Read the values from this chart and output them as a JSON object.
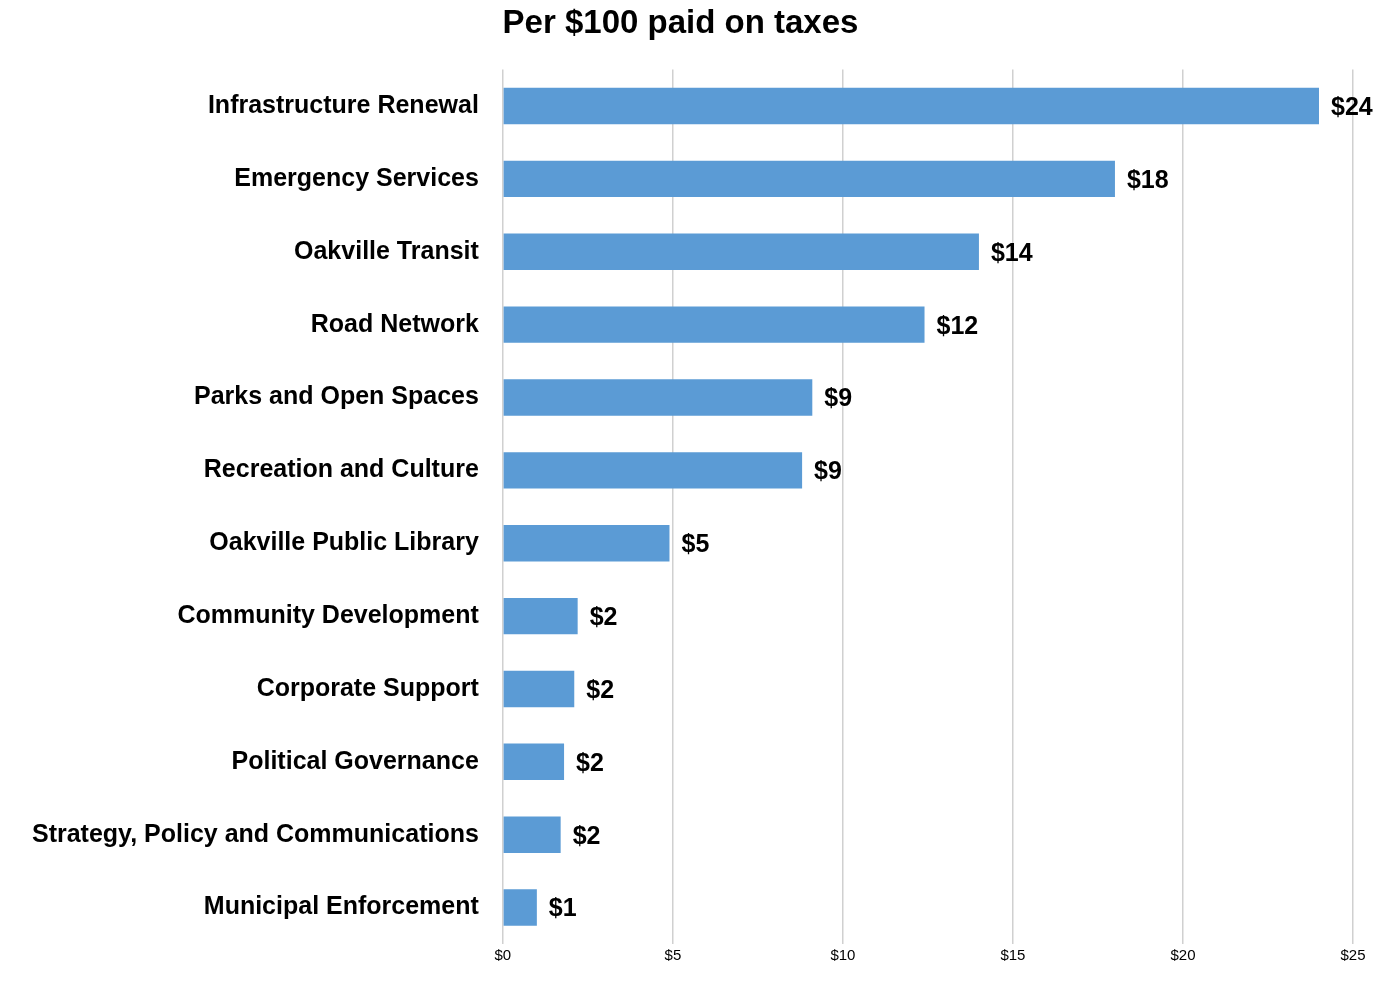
{
  "chart_data": {
    "type": "bar",
    "orientation": "horizontal",
    "title": "Per $100 paid on taxes",
    "categories": [
      "Infrastructure Renewal",
      "Emergency Services",
      "Oakville Transit",
      "Road Network",
      "Parks and Open Spaces",
      "Recreation and Culture",
      "Oakville Public Library",
      "Community Development",
      "Corporate Support",
      "Political Governance",
      "Strategy, Policy and Communications",
      "Municipal Enforcement"
    ],
    "values": [
      24.0,
      18.0,
      14.0,
      12.4,
      9.1,
      8.8,
      4.9,
      2.2,
      2.1,
      1.8,
      1.7,
      1.0
    ],
    "value_labels": [
      "$24",
      "$18",
      "$14",
      "$12",
      "$9",
      "$9",
      "$5",
      "$2",
      "$2",
      "$2",
      "$2",
      "$1"
    ],
    "color": "#5b9bd5",
    "xlim": [
      0,
      25
    ],
    "xticks": [
      {
        "value": 0,
        "label": "$0"
      },
      {
        "value": 5,
        "label": "$5"
      },
      {
        "value": 10,
        "label": "$10"
      },
      {
        "value": 15,
        "label": "$15"
      },
      {
        "value": 20,
        "label": "$20"
      },
      {
        "value": 25,
        "label": "$25"
      }
    ],
    "grid": "x"
  }
}
